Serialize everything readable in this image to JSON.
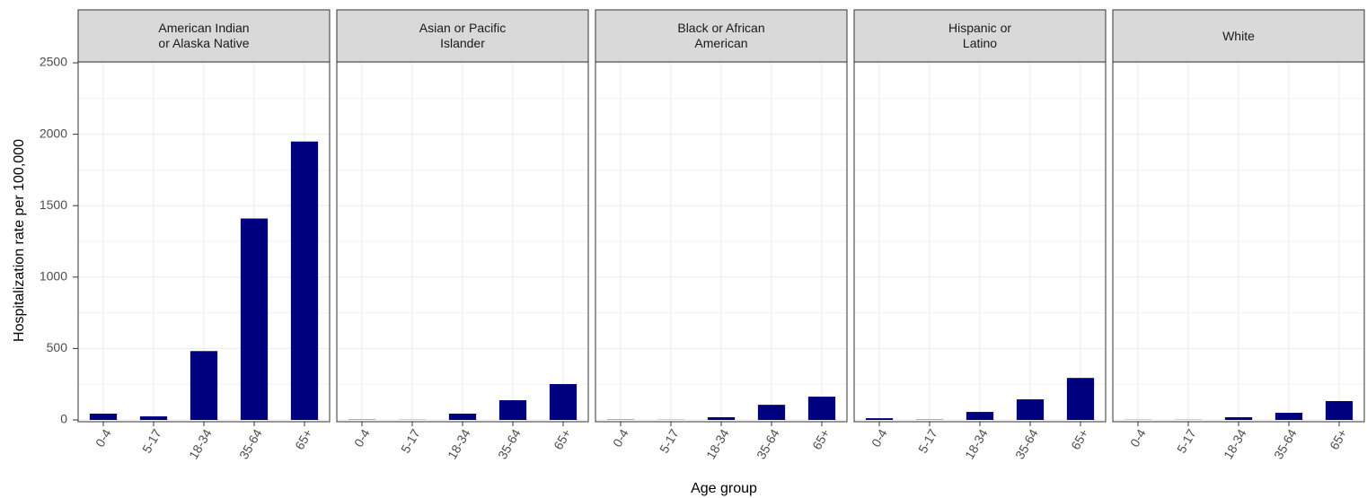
{
  "chart_data": {
    "type": "bar",
    "y_label": "Hospitalization rate per 100,000",
    "x_label": "Age group",
    "categories": [
      "0-4",
      "5-17",
      "18-34",
      "35-64",
      "65+"
    ],
    "color": "#00007f",
    "ylim": [
      0,
      2500
    ],
    "yticks": [
      0,
      500,
      1000,
      1500,
      2000,
      2500
    ],
    "grid": true,
    "facets": [
      {
        "title": "American Indian\nor Alaska Native",
        "values": [
          44,
          25,
          482,
          1410,
          1949
        ]
      },
      {
        "title": "Asian or Pacific\nIslander",
        "values": [
          2,
          1,
          44,
          138,
          251
        ]
      },
      {
        "title": "Black or African\nAmerican",
        "values": [
          2,
          1,
          19,
          106,
          163
        ]
      },
      {
        "title": "Hispanic or\nLatino",
        "values": [
          12,
          2,
          56,
          144,
          294
        ]
      },
      {
        "title": "White",
        "values": [
          1,
          1,
          19,
          50,
          132
        ]
      }
    ]
  }
}
